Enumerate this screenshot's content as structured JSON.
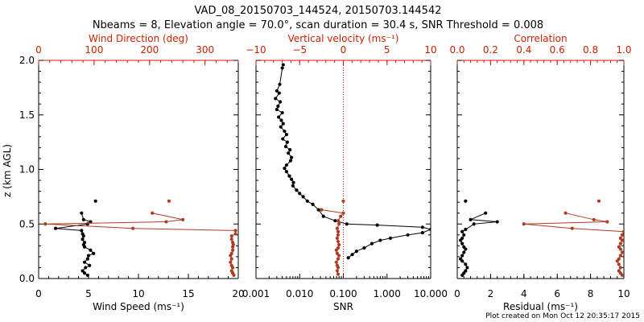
{
  "title": "VAD_08_20150703_144524, 20150703.144542",
  "subtitle": "Nbeams = 8, Elevation angle = 70.0°, scan duration = 30.4 s, SNR Threshold = 0.008",
  "footer": "Plot created on Mon Oct 12 20:35:17 2015",
  "colors": {
    "primary": "#000000",
    "secondary": "#b03a22",
    "secondary_axis": "#dd1100"
  },
  "chart_data": [
    {
      "type": "line",
      "panel": "wind",
      "ylabel": "z (km AGL)",
      "ylim": [
        0,
        2
      ],
      "yticks": [
        "0.0",
        "0.5",
        "1.0",
        "1.5",
        "2.0"
      ],
      "xlabel": "Wind Speed (ms⁻¹)",
      "xlim": [
        0,
        20
      ],
      "xticks": [
        "0",
        "5",
        "10",
        "15",
        "20"
      ],
      "top_xlabel": "Wind Direction (deg)",
      "top_xlim": [
        0,
        360
      ],
      "top_xticks": [
        "0",
        "100",
        "200",
        "300"
      ],
      "series": [
        {
          "axis": "bottom",
          "x": [
            5.7,
            4.3,
            4.5,
            5.2,
            4.9,
            1.7,
            4.3,
            4.4,
            4.5,
            4.4,
            4.6,
            4.5,
            4.6,
            5.2,
            5.5,
            5.0,
            4.9,
            4.6,
            5.1,
            4.7,
            4.4,
            4.6,
            4.9
          ],
          "y": [
            0.71,
            0.6,
            0.54,
            0.52,
            0.5,
            0.46,
            0.44,
            0.41,
            0.39,
            0.36,
            0.33,
            0.31,
            0.29,
            0.26,
            0.23,
            0.21,
            0.18,
            0.15,
            0.12,
            0.1,
            0.07,
            0.05,
            0.03
          ]
        },
        {
          "axis": "top",
          "x": [
            235,
            205,
            260,
            230,
            12,
            170,
            355,
            355,
            348,
            348,
            350,
            351,
            350,
            350,
            348,
            346,
            348,
            346,
            348,
            350,
            348,
            350,
            352
          ],
          "y": [
            0.71,
            0.6,
            0.54,
            0.52,
            0.5,
            0.46,
            0.44,
            0.41,
            0.39,
            0.36,
            0.33,
            0.31,
            0.29,
            0.26,
            0.23,
            0.21,
            0.18,
            0.15,
            0.12,
            0.1,
            0.07,
            0.05,
            0.03
          ]
        }
      ]
    },
    {
      "type": "line",
      "panel": "snr",
      "xscale": "log",
      "xlabel": "SNR",
      "xlim": [
        0.001,
        10
      ],
      "xticks": [
        "0.001",
        "0.010",
        "0.100",
        "1.000",
        "10.000"
      ],
      "top_xlabel": "Vertical velocity (ms⁻¹)",
      "top_xlim": [
        -10,
        10
      ],
      "top_xticks": [
        "−10",
        "−5",
        "0",
        "5",
        "10"
      ],
      "reference_line_top_x": 0,
      "series": [
        {
          "axis": "bottom",
          "x": [
            0.0042,
            0.004,
            0.0035,
            0.003,
            0.0034,
            0.0028,
            0.0036,
            0.0032,
            0.003,
            0.004,
            0.0033,
            0.0038,
            0.0042,
            0.0037,
            0.0045,
            0.005,
            0.0041,
            0.0052,
            0.0048,
            0.006,
            0.0055,
            0.0065,
            0.0062,
            0.005,
            0.0045,
            0.005,
            0.0058,
            0.0065,
            0.0072,
            0.007,
            0.0085,
            0.01,
            0.012,
            0.015,
            0.02,
            0.027,
            0.035,
            0.065,
            0.12,
            0.6,
            6.5,
            10.0,
            6.5,
            3.0,
            1.2,
            0.7,
            0.45,
            0.3,
            0.2,
            0.16,
            0.13
          ],
          "y": [
            1.96,
            1.93,
            1.78,
            1.72,
            1.7,
            1.65,
            1.62,
            1.58,
            1.55,
            1.52,
            1.48,
            1.45,
            1.42,
            1.39,
            1.35,
            1.32,
            1.28,
            1.25,
            1.21,
            1.18,
            1.15,
            1.11,
            1.08,
            1.04,
            1.01,
            0.98,
            0.94,
            0.91,
            0.88,
            0.85,
            0.81,
            0.78,
            0.75,
            0.71,
            0.68,
            0.63,
            0.57,
            0.53,
            0.5,
            0.49,
            0.47,
            0.45,
            0.42,
            0.4,
            0.37,
            0.35,
            0.32,
            0.28,
            0.25,
            0.22,
            0.19
          ]
        },
        {
          "axis": "top",
          "x": [
            0,
            -2.5,
            0,
            -0.3,
            -0.6,
            -0.5,
            -0.7,
            -0.6,
            -0.6,
            -0.7,
            -0.6,
            -0.5,
            -0.6,
            -0.8,
            -0.7,
            -0.5,
            -0.6,
            -0.8,
            -0.7,
            -0.6,
            -0.7,
            -0.6
          ],
          "y": [
            0.71,
            0.63,
            0.6,
            0.57,
            0.53,
            0.5,
            0.46,
            0.43,
            0.4,
            0.37,
            0.34,
            0.31,
            0.28,
            0.26,
            0.23,
            0.21,
            0.18,
            0.15,
            0.12,
            0.1,
            0.07,
            0.04
          ]
        }
      ]
    },
    {
      "type": "line",
      "panel": "residual",
      "xlabel": "Residual (ms⁻¹)",
      "xlim": [
        0,
        10
      ],
      "xticks": [
        "0",
        "2",
        "4",
        "6",
        "8",
        "10"
      ],
      "top_xlabel": "Correlation",
      "top_xlim": [
        0,
        1
      ],
      "top_xticks": [
        "0.0",
        "0.2",
        "0.4",
        "0.6",
        "0.8",
        "1.0"
      ],
      "series": [
        {
          "axis": "bottom",
          "x": [
            0.5,
            1.7,
            0.8,
            2.4,
            1.0,
            0.5,
            0.3,
            0.4,
            0.3,
            0.2,
            0.3,
            0.4,
            0.5,
            0.4,
            0.3,
            0.2,
            0.3,
            0.5,
            0.6,
            0.5,
            0.4,
            0.3
          ],
          "y": [
            0.71,
            0.6,
            0.54,
            0.52,
            0.5,
            0.45,
            0.43,
            0.4,
            0.37,
            0.35,
            0.32,
            0.29,
            0.27,
            0.24,
            0.21,
            0.18,
            0.16,
            0.13,
            0.1,
            0.07,
            0.05,
            0.03
          ]
        },
        {
          "axis": "top",
          "x": [
            0.85,
            0.65,
            0.82,
            0.9,
            0.4,
            0.69,
            1.0,
            0.99,
            0.98,
            0.99,
            0.98,
            0.97,
            0.98,
            0.99,
            0.98,
            0.97,
            0.96,
            0.97,
            0.98,
            0.97,
            0.98,
            0.99
          ],
          "y": [
            0.71,
            0.6,
            0.54,
            0.52,
            0.5,
            0.46,
            0.43,
            0.4,
            0.37,
            0.35,
            0.32,
            0.29,
            0.27,
            0.24,
            0.21,
            0.18,
            0.16,
            0.13,
            0.1,
            0.07,
            0.05,
            0.03
          ]
        }
      ]
    }
  ]
}
